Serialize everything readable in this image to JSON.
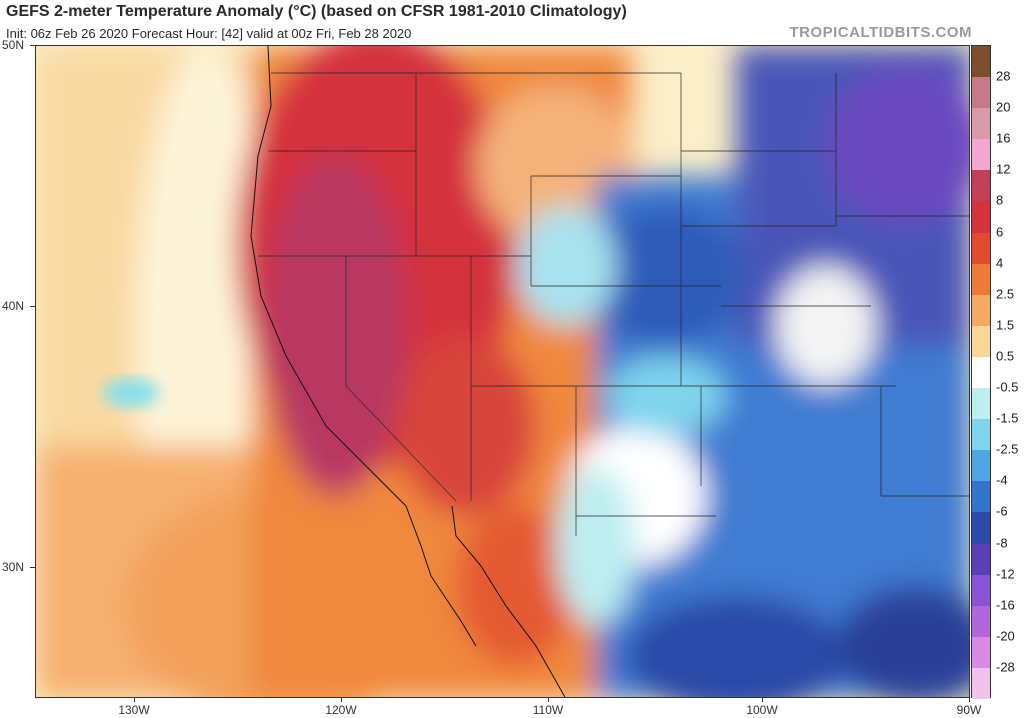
{
  "header": {
    "title": "GEFS 2-meter Temperature Anomaly (°C) (based on CFSR 1981-2010 Climatology)",
    "subtitle": "Init: 06z Feb 26 2020   Forecast Hour: [42]   valid at 00z Fri, Feb 28 2020",
    "brand": "TROPICALTIDBITS.COM"
  },
  "axes": {
    "lat_labels": [
      "50N",
      "40N",
      "30N"
    ],
    "lon_labels": [
      "130W",
      "120W",
      "110W",
      "100W",
      "90W"
    ]
  },
  "colorbar": {
    "labels": [
      "28",
      "20",
      "16",
      "12",
      "8",
      "6",
      "4",
      "2.5",
      "1.5",
      "0.5",
      "-0.5",
      "-1.5",
      "-2.5",
      "-4",
      "-6",
      "-8",
      "-12",
      "-16",
      "-20",
      "-28"
    ],
    "colors": [
      "#7a4f2a",
      "#c47a8a",
      "#d79aa8",
      "#f2a6d0",
      "#c0405a",
      "#d4323c",
      "#e04a2e",
      "#ee7a3a",
      "#f5a962",
      "#f9d79a",
      "#ffffff",
      "#bdeef0",
      "#7fd4ec",
      "#4fa6e4",
      "#3472cc",
      "#2c49a8",
      "#5a3fb4",
      "#8a52d4",
      "#b266dc",
      "#d88ae6",
      "#f2c2ee"
    ]
  }
}
